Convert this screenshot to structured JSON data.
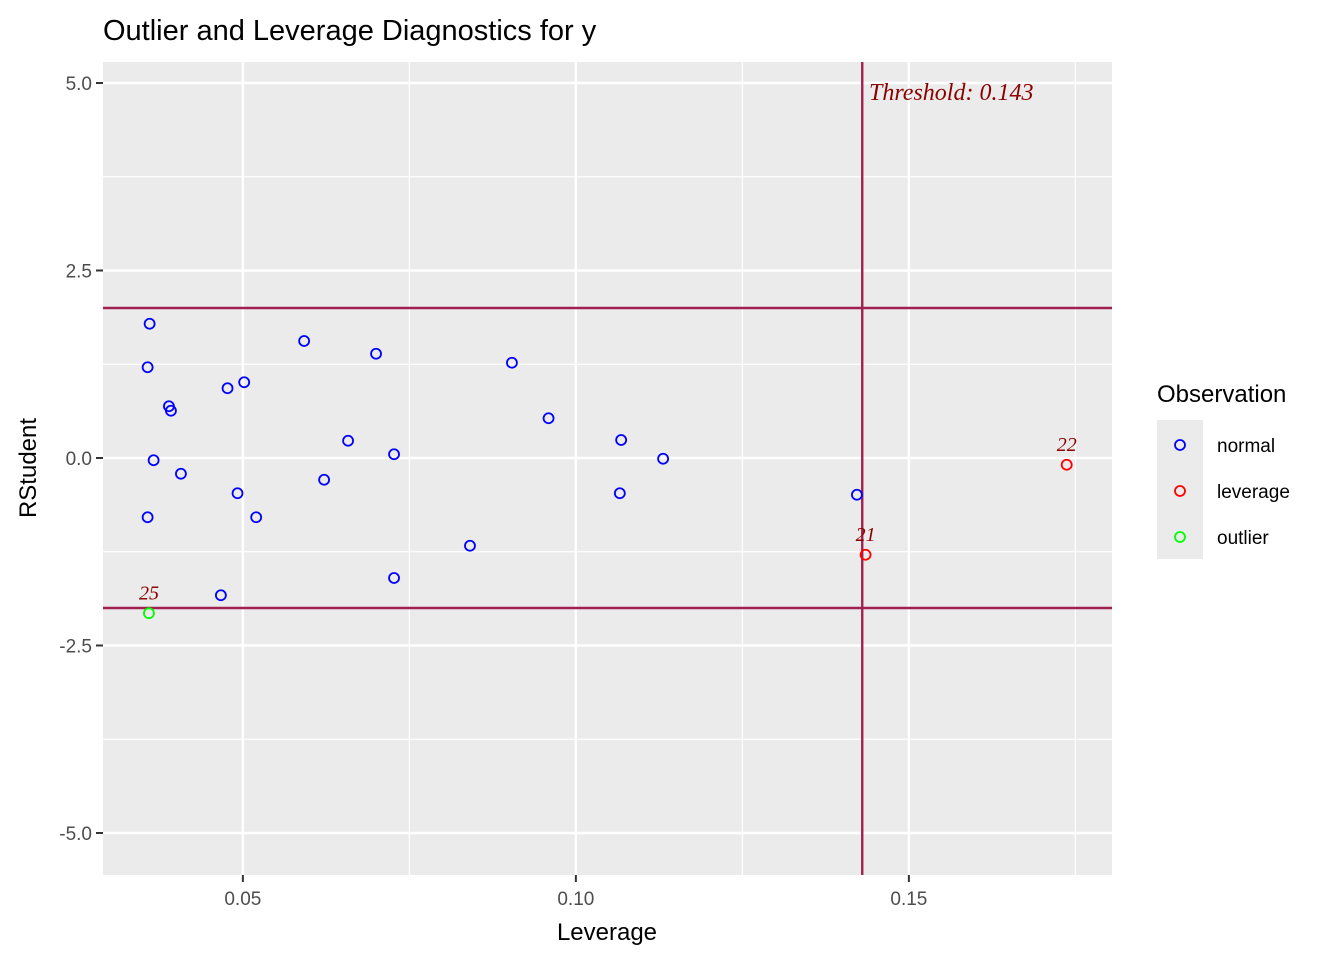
{
  "chart_data": {
    "type": "scatter",
    "title": "Outlier and Leverage Diagnostics for y",
    "xlabel": "Leverage",
    "ylabel": "RStudent",
    "xlim": [
      0.029,
      0.1805
    ],
    "ylim": [
      -5.56,
      5.28
    ],
    "xticks": [
      0.05,
      0.1,
      0.15
    ],
    "xtick_labels": [
      "0.05",
      "0.10",
      "0.15"
    ],
    "yticks": [
      5.0,
      2.5,
      0.0,
      -2.5,
      -5.0
    ],
    "ytick_labels": [
      "5.0",
      "2.5",
      "0.0",
      "-2.5",
      "-5.0"
    ],
    "grid": true,
    "legend": {
      "title": "Observation",
      "placement": "right",
      "entries": [
        {
          "label": "normal",
          "color": "#0000ff"
        },
        {
          "label": "leverage",
          "color": "#ff0000"
        },
        {
          "label": "outlier",
          "color": "#00ff00"
        }
      ]
    },
    "reference_lines": {
      "vertical": 0.143,
      "horizontal": [
        2,
        -2
      ],
      "color": "#a0204f"
    },
    "threshold_label": "Threshold: 0.143",
    "label_color": "#8b0000",
    "points": [
      {
        "x": 0.036,
        "y": 1.79,
        "group": "normal"
      },
      {
        "x": 0.0357,
        "y": 1.21,
        "group": "normal"
      },
      {
        "x": 0.0389,
        "y": 0.69,
        "group": "normal"
      },
      {
        "x": 0.0392,
        "y": 0.63,
        "group": "normal"
      },
      {
        "x": 0.0366,
        "y": -0.03,
        "group": "normal"
      },
      {
        "x": 0.0407,
        "y": -0.21,
        "group": "normal"
      },
      {
        "x": 0.0357,
        "y": -0.79,
        "group": "normal"
      },
      {
        "x": 0.0477,
        "y": 0.93,
        "group": "normal"
      },
      {
        "x": 0.0502,
        "y": 1.01,
        "group": "normal"
      },
      {
        "x": 0.0492,
        "y": -0.47,
        "group": "normal"
      },
      {
        "x": 0.052,
        "y": -0.79,
        "group": "normal"
      },
      {
        "x": 0.0467,
        "y": -1.83,
        "group": "normal"
      },
      {
        "x": 0.0359,
        "y": -2.07,
        "group": "outlier",
        "label": "25"
      },
      {
        "x": 0.0592,
        "y": 1.56,
        "group": "normal"
      },
      {
        "x": 0.07,
        "y": 1.39,
        "group": "normal"
      },
      {
        "x": 0.0658,
        "y": 0.23,
        "group": "normal"
      },
      {
        "x": 0.0622,
        "y": -0.29,
        "group": "normal"
      },
      {
        "x": 0.0727,
        "y": 0.05,
        "group": "normal"
      },
      {
        "x": 0.0727,
        "y": -1.6,
        "group": "normal"
      },
      {
        "x": 0.0841,
        "y": -1.17,
        "group": "normal"
      },
      {
        "x": 0.0904,
        "y": 1.27,
        "group": "normal"
      },
      {
        "x": 0.0959,
        "y": 0.53,
        "group": "normal"
      },
      {
        "x": 0.1068,
        "y": 0.24,
        "group": "normal"
      },
      {
        "x": 0.1066,
        "y": -0.47,
        "group": "normal"
      },
      {
        "x": 0.1131,
        "y": -0.01,
        "group": "normal"
      },
      {
        "x": 0.1422,
        "y": -0.49,
        "group": "normal"
      },
      {
        "x": 0.1435,
        "y": -1.29,
        "group": "leverage",
        "label": "21"
      },
      {
        "x": 0.1737,
        "y": -0.09,
        "group": "leverage",
        "label": "22"
      }
    ]
  }
}
